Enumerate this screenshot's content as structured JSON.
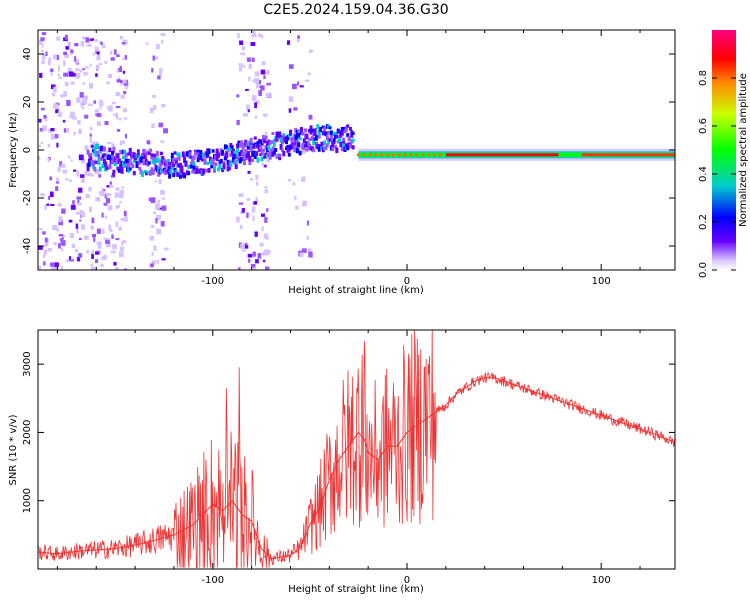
{
  "figure_title": "C2E5.2024.159.04.36.G30",
  "chart_data": [
    {
      "type": "heatmap",
      "title": "C2E5.2024.159.04.36.G30",
      "xlabel": "Height of straight line (km)",
      "ylabel": "Frequency (Hz)",
      "xlim": [
        -190,
        138
      ],
      "ylim": [
        -50,
        50
      ],
      "xticks": [
        -100,
        0,
        100
      ],
      "yticks": [
        -40,
        -20,
        0,
        20,
        40
      ],
      "colorbar": {
        "label": "Normalized spectral amplitude",
        "ticks": [
          0.0,
          0.2,
          0.4,
          0.6,
          0.8
        ],
        "range": [
          0,
          1
        ]
      },
      "description_series": [
        {
          "name": "ridge_center_hz",
          "x": [
            -160,
            -140,
            -120,
            -100,
            -80,
            -60,
            -45,
            -30,
            -25,
            -20,
            0,
            50,
            100,
            138
          ],
          "y": [
            -3,
            -4,
            -5,
            -4,
            1,
            4,
            6,
            6,
            0,
            -2,
            -2,
            -2,
            -2,
            -2
          ]
        }
      ]
    },
    {
      "type": "line",
      "xlabel": "Height of straight line (km)",
      "ylabel": "SNR (10 * v/v)",
      "xlim": [
        -190,
        138
      ],
      "ylim": [
        0,
        3500
      ],
      "xticks": [
        -100,
        0,
        100
      ],
      "yticks": [
        1000,
        2000,
        3000
      ],
      "color": "#ee3333",
      "series": [
        {
          "name": "SNR",
          "x": [
            -190,
            -180,
            -170,
            -160,
            -150,
            -140,
            -130,
            -120,
            -110,
            -105,
            -100,
            -95,
            -90,
            -85,
            -80,
            -75,
            -70,
            -60,
            -55,
            -50,
            -45,
            -40,
            -35,
            -30,
            -25,
            -22,
            -20,
            -15,
            -10,
            -5,
            0,
            5,
            10,
            15,
            20,
            25,
            30,
            35,
            40,
            45,
            50,
            60,
            70,
            80,
            90,
            100,
            110,
            120,
            130,
            138
          ],
          "y": [
            250,
            220,
            260,
            280,
            300,
            350,
            420,
            500,
            650,
            800,
            950,
            850,
            1000,
            800,
            700,
            300,
            150,
            200,
            300,
            650,
            900,
            1300,
            1600,
            1800,
            2000,
            1900,
            1700,
            1600,
            1800,
            1800,
            2000,
            2100,
            2200,
            2300,
            2400,
            2550,
            2650,
            2750,
            2800,
            2800,
            2750,
            2650,
            2550,
            2450,
            2350,
            2250,
            2150,
            2050,
            1950,
            1850
          ]
        }
      ]
    }
  ]
}
